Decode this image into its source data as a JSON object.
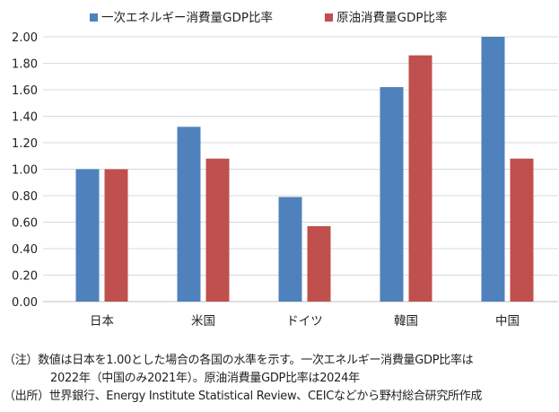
{
  "chart_data": {
    "type": "bar",
    "categories": [
      "日本",
      "米国",
      "ドイツ",
      "韓国",
      "中国"
    ],
    "series": [
      {
        "name": "一次エネルギー消費量GDP比率",
        "color": "#4F81BD",
        "values": [
          1.0,
          1.32,
          0.79,
          1.62,
          2.0
        ]
      },
      {
        "name": "原油消費量GDP比率",
        "color": "#C0504D",
        "values": [
          1.0,
          1.08,
          0.57,
          1.86,
          1.08
        ]
      }
    ],
    "ylim": [
      0,
      2.0
    ],
    "yticks": [
      "0.00",
      "0.20",
      "0.40",
      "0.60",
      "0.80",
      "1.00",
      "1.20",
      "1.40",
      "1.60",
      "1.80",
      "2.00"
    ],
    "grid": true,
    "legend": "top"
  },
  "notes": {
    "note_line1": "（注）数値は日本を1.00とした場合の各国の水準を示す。一次エネルギー消費量GDP比率は",
    "note_line2": "2022年（中国のみ2021年）。原油消費量GDP比率は2024年",
    "source": "（出所）世界銀行、Energy Institute Statistical Review、CEICなどから野村総合研究所作成"
  }
}
